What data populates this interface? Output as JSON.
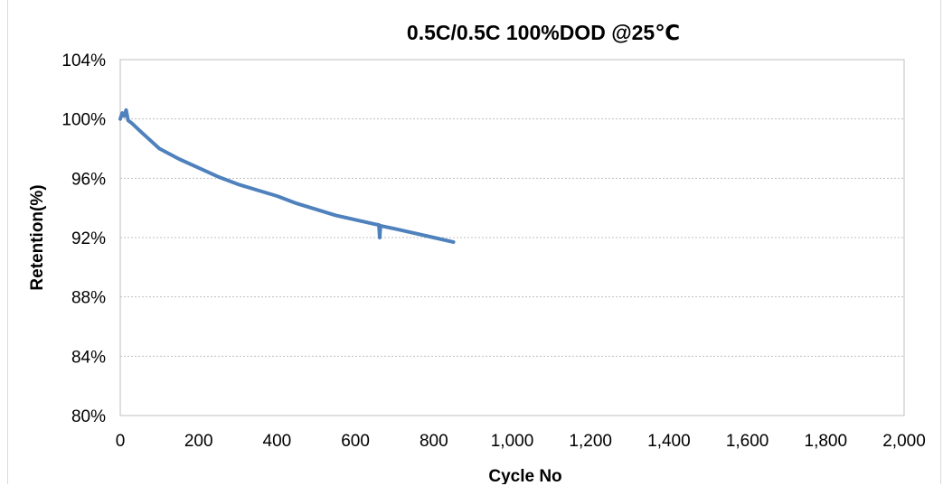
{
  "chart_data": {
    "type": "line",
    "title": "0.5C/0.5C 100%DOD @25℃",
    "xlabel": "Cycle No",
    "ylabel": "Retention(%)",
    "xlim": [
      0,
      2000
    ],
    "ylim": [
      80,
      104
    ],
    "x_ticks": [
      0,
      200,
      400,
      600,
      800,
      1000,
      1200,
      1400,
      1600,
      1800,
      2000
    ],
    "x_tick_labels": [
      "0",
      "200",
      "400",
      "600",
      "800",
      "1,000",
      "1,200",
      "1,400",
      "1,600",
      "1,800",
      "2,000"
    ],
    "y_ticks": [
      80,
      84,
      88,
      92,
      96,
      100,
      104
    ],
    "y_tick_labels": [
      "80%",
      "84%",
      "88%",
      "92%",
      "96%",
      "100%",
      "104%"
    ],
    "grid": true,
    "line_color": "#4f81bd",
    "series": [
      {
        "values": [
          {
            "x": 0,
            "y": 100.0
          },
          {
            "x": 5,
            "y": 100.4
          },
          {
            "x": 10,
            "y": 100.2
          },
          {
            "x": 15,
            "y": 100.6
          },
          {
            "x": 20,
            "y": 99.9
          },
          {
            "x": 30,
            "y": 99.7
          },
          {
            "x": 50,
            "y": 99.2
          },
          {
            "x": 75,
            "y": 98.6
          },
          {
            "x": 100,
            "y": 98.0
          },
          {
            "x": 150,
            "y": 97.3
          },
          {
            "x": 200,
            "y": 96.7
          },
          {
            "x": 250,
            "y": 96.1
          },
          {
            "x": 300,
            "y": 95.6
          },
          {
            "x": 350,
            "y": 95.2
          },
          {
            "x": 400,
            "y": 94.8
          },
          {
            "x": 450,
            "y": 94.3
          },
          {
            "x": 500,
            "y": 93.9
          },
          {
            "x": 550,
            "y": 93.5
          },
          {
            "x": 600,
            "y": 93.2
          },
          {
            "x": 650,
            "y": 92.9
          },
          {
            "x": 660,
            "y": 92.85
          },
          {
            "x": 662,
            "y": 92.0
          },
          {
            "x": 664,
            "y": 92.8
          },
          {
            "x": 700,
            "y": 92.6
          },
          {
            "x": 750,
            "y": 92.3
          },
          {
            "x": 800,
            "y": 92.0
          },
          {
            "x": 850,
            "y": 91.7
          }
        ]
      }
    ]
  }
}
